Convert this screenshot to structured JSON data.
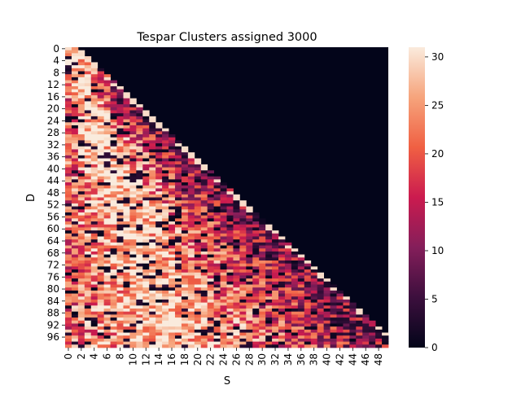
{
  "chart_data": {
    "type": "heatmap",
    "title": "Tespar Clusters assigned 3000",
    "xlabel": "S",
    "ylabel": "D",
    "n_cols": 50,
    "n_rows": 100,
    "x_tick_labels": [
      "0",
      "2",
      "4",
      "6",
      "8",
      "10",
      "12",
      "14",
      "16",
      "18",
      "20",
      "22",
      "24",
      "26",
      "28",
      "30",
      "32",
      "34",
      "36",
      "38",
      "40",
      "42",
      "44",
      "46",
      "48"
    ],
    "y_tick_labels": [
      "0",
      "4",
      "8",
      "12",
      "16",
      "20",
      "24",
      "28",
      "32",
      "36",
      "40",
      "44",
      "48",
      "52",
      "56",
      "60",
      "64",
      "68",
      "72",
      "76",
      "80",
      "84",
      "88",
      "92",
      "96"
    ],
    "colorbar": {
      "min": 0,
      "max": 31,
      "tick_labels": [
        "0",
        "5",
        "10",
        "15",
        "20",
        "25",
        "30"
      ],
      "tick_values": [
        0,
        5,
        10,
        15,
        20,
        25,
        30
      ]
    },
    "empty_region": "upper-right triangle (cells where S exceeds roughly D/2) are 0 / dark",
    "colormap": "rocket",
    "colormap_stops": [
      "#03051a",
      "#3c0f3d",
      "#841e5a",
      "#cb1b4f",
      "#f06043",
      "#f6a47c",
      "#faebdd"
    ]
  }
}
